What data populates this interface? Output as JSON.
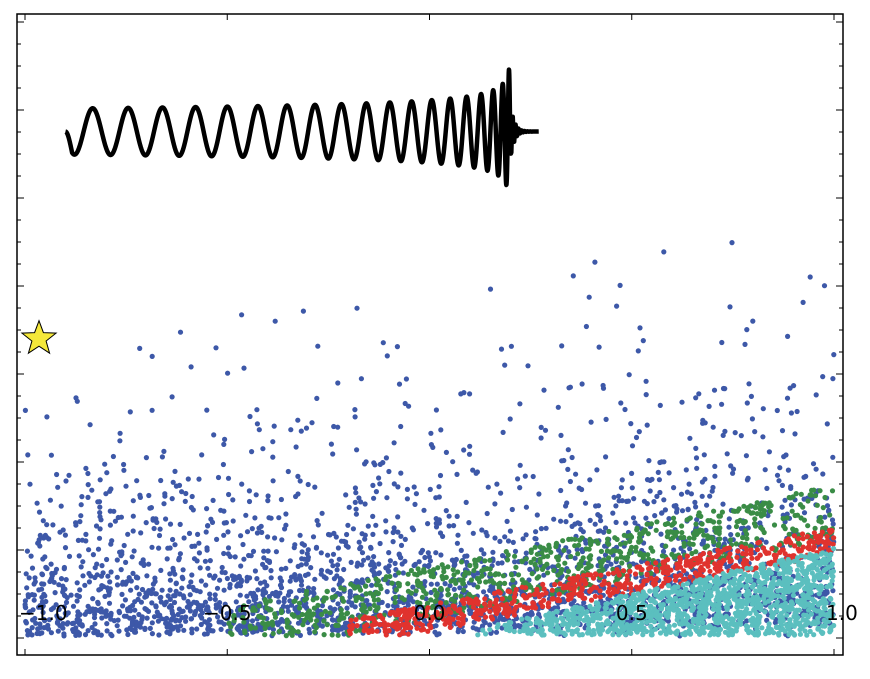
{
  "chart_data": {
    "type": "scatter",
    "title": "",
    "xlabel": "",
    "ylabel": "",
    "xlim": [
      -1.0,
      1.0
    ],
    "ylim": [
      0,
      6.4
    ],
    "grid": false,
    "x_tick_labels": [
      {
        "value": -1.0,
        "label": "−1.0"
      },
      {
        "value": -0.5,
        "label": "−0.5"
      },
      {
        "value": 0.0,
        "label": "0.0"
      },
      {
        "value": 0.5,
        "label": "0.5"
      },
      {
        "value": 1.0,
        "label": "1.0"
      }
    ],
    "series": [
      {
        "color": "#3d58a8",
        "distribution": "broad, concentrated at low y (~0–1.5) across full x range, sparse outliers up to y≈4.0",
        "approx_points": 2600
      },
      {
        "color": "#3a8c46",
        "distribution": "diagonal band from (−0.5, 0.05) rising to (1.0, 1.3)",
        "approx_points": 800
      },
      {
        "color": "#e0332e",
        "distribution": "tight diagonal band from (−0.2, 0.05) rising to (1.0, 1.0)",
        "approx_points": 600
      },
      {
        "color": "#5bbfbf",
        "distribution": "dense wedge filling lower-right region from x≈0.1 to 1.0, y up to ~0.9",
        "approx_points": 1200
      }
    ],
    "annotations": [
      {
        "type": "star-marker",
        "x": -1.03,
        "y": 3.1,
        "color": "#f5e83a"
      },
      {
        "type": "chirp-waveform-inset",
        "x_start": -0.9,
        "x_end": 0.27,
        "y_center": 5.1,
        "color": "#000000"
      }
    ]
  }
}
